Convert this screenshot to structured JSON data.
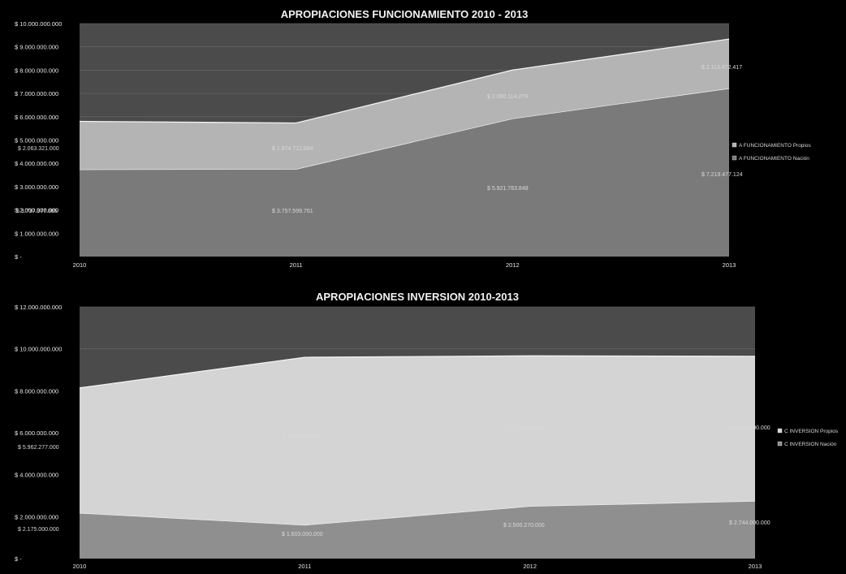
{
  "colors": {
    "page_bg": "#000000",
    "plot_bg": "#4b4b4b",
    "funcionamiento_nacion": "#7a7a7a",
    "funcionamiento_propios": "#b4b4b4",
    "inversion_nacion": "#8f8f8f",
    "inversion_propios": "#d4d4d4",
    "series_edge": "#f2f2f2",
    "text": "#e6e6e6"
  },
  "chart_data": [
    {
      "type": "area",
      "stacked": true,
      "title": "APROPIACIONES FUNCIONAMIENTO 2010 - 2013",
      "x": [
        "2010",
        "2011",
        "2012",
        "2013"
      ],
      "ylim": [
        0,
        10000000000
      ],
      "yticks": [
        {
          "value": 0,
          "label": "$ -"
        },
        {
          "value": 1000000000,
          "label": "$ 1.000.000.000"
        },
        {
          "value": 2000000000,
          "label": "$ 2.000.000.000"
        },
        {
          "value": 3000000000,
          "label": "$ 3.000.000.000"
        },
        {
          "value": 4000000000,
          "label": "$ 4.000.000.000"
        },
        {
          "value": 5000000000,
          "label": "$ 5.000.000.000"
        },
        {
          "value": 6000000000,
          "label": "$ 6.000.000.000"
        },
        {
          "value": 7000000000,
          "label": "$ 7.000.000.000"
        },
        {
          "value": 8000000000,
          "label": "$ 8.000.000.000"
        },
        {
          "value": 9000000000,
          "label": "$ 9.000.000.000"
        },
        {
          "value": 10000000000,
          "label": "$ 10.000.000.000"
        }
      ],
      "grid": true,
      "legend_position": "right",
      "series": [
        {
          "name": "A FUNCIONAMIENTO Nación",
          "values": [
            3737377085,
            3757599761,
            5921763848,
            7219477124
          ],
          "labels": [
            "$ 3.737.377.085",
            "$ 3.757.599.761",
            "$ 5.921.763.848",
            "$ 7.219.477.124"
          ]
        },
        {
          "name": "A FUNCIONAMIENTO Propios",
          "values": [
            2063321000,
            1974712884,
            2080114279,
            2113472417
          ],
          "labels": [
            "$ 2.063.321.000",
            "$ 1.974.712.884",
            "$ 2.080.114.279",
            "$ 2.113.472.417"
          ]
        }
      ]
    },
    {
      "type": "area",
      "stacked": true,
      "title": "APROPIACIONES INVERSION 2010-2013",
      "x": [
        "2010",
        "2011",
        "2012",
        "2013"
      ],
      "ylim": [
        0,
        12000000000
      ],
      "yticks": [
        {
          "value": 0,
          "label": "$ -"
        },
        {
          "value": 2000000000,
          "label": "$ 2.000.000.000"
        },
        {
          "value": 4000000000,
          "label": "$ 4.000.000.000"
        },
        {
          "value": 6000000000,
          "label": "$ 6.000.000.000"
        },
        {
          "value": 8000000000,
          "label": "$ 8.000.000.000"
        },
        {
          "value": 10000000000,
          "label": "$ 10.000.000.000"
        },
        {
          "value": 12000000000,
          "label": "$ 12.000.000.000"
        }
      ],
      "grid": true,
      "legend_position": "right",
      "series": [
        {
          "name": "C INVERSION Nación",
          "values": [
            2175000000,
            1603000000,
            2500270000,
            2744000000
          ],
          "labels": [
            "$ 2.175.000.000",
            "$ 1.603.000.000",
            "$ 2.500.270.000",
            "$ 2.744.000.000"
          ]
        },
        {
          "name": "C INVERSION Propios",
          "values": [
            5962277000,
            7992000000,
            7167000000,
            6900000000
          ],
          "labels": [
            "$ 5.962.277.000",
            "$ 7.992.000.000",
            "$ 7.167.000.000",
            "$ 6.900.000.000"
          ]
        }
      ]
    }
  ]
}
